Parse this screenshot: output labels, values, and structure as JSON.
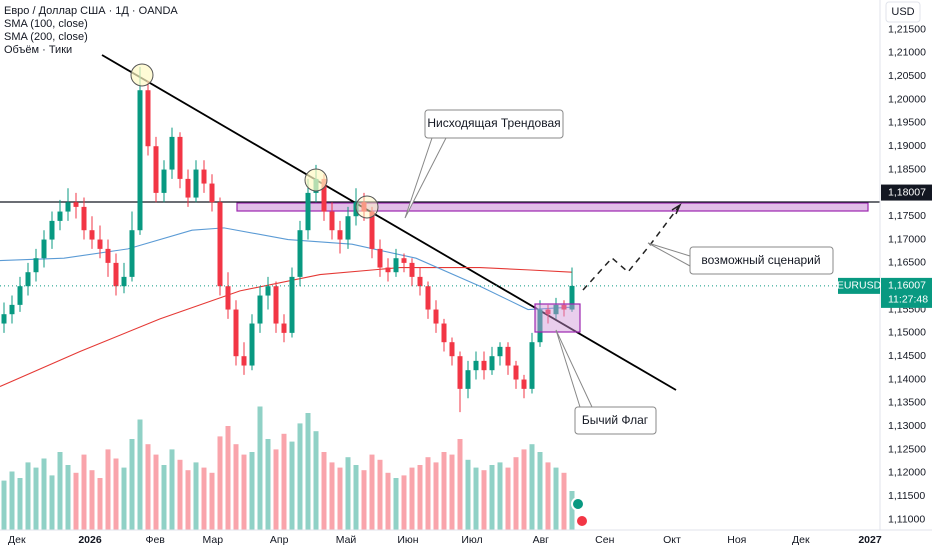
{
  "chart_data": {
    "type": "candlestick",
    "title": "Евро / Доллар США · 1Д · OANDA",
    "indicators": [
      "SMA (100, close)",
      "SMA (200, close)",
      "Объём · Тики"
    ],
    "currency": "USD",
    "symbol": "EURUSD",
    "countdown": "11:27:48",
    "last_price": {
      "value": 1.16007,
      "label": "1,16007"
    },
    "level": {
      "value": 1.18007,
      "label": "1,18007"
    },
    "annotations": [
      "Нисходящая Трендовая",
      "возможный сценарий",
      "Бычий Флаг"
    ],
    "up_color": "#089981",
    "down_color": "#f23645",
    "xlim": [
      0,
      110
    ],
    "xticks": [
      {
        "value": 2.1,
        "label": "Дек"
      },
      {
        "value": 11.25,
        "label": "2026"
      },
      {
        "value": 19.4,
        "label": "Фев"
      },
      {
        "value": 26.6,
        "label": "Мар"
      },
      {
        "value": 34.9,
        "label": "Апр"
      },
      {
        "value": 43.25,
        "label": "Май"
      },
      {
        "value": 51,
        "label": "Июн"
      },
      {
        "value": 59,
        "label": "Июл"
      },
      {
        "value": 67.6,
        "label": "Авг"
      },
      {
        "value": 75.6,
        "label": "Сен"
      },
      {
        "value": 84,
        "label": "Окт"
      },
      {
        "value": 92.1,
        "label": "Ноя"
      },
      {
        "value": 100.1,
        "label": "Дек"
      },
      {
        "value": 108.75,
        "label": "2027"
      }
    ],
    "ylim": [
      1.10775,
      1.22134
    ],
    "yticks": [
      {
        "value": 1.11,
        "label": "1,11000"
      },
      {
        "value": 1.115,
        "label": "1,11500"
      },
      {
        "value": 1.12,
        "label": "1,12000"
      },
      {
        "value": 1.125,
        "label": "1,12500"
      },
      {
        "value": 1.13,
        "label": "1,13000"
      },
      {
        "value": 1.135,
        "label": "1,13500"
      },
      {
        "value": 1.14,
        "label": "1,14000"
      },
      {
        "value": 1.145,
        "label": "1,14500"
      },
      {
        "value": 1.15,
        "label": "1,15000"
      },
      {
        "value": 1.155,
        "label": "1,15500"
      },
      {
        "value": 1.165,
        "label": "1,16500"
      },
      {
        "value": 1.17,
        "label": "1,17000"
      },
      {
        "value": 1.175,
        "label": "1,17500"
      },
      {
        "value": 1.185,
        "label": "1,18500"
      },
      {
        "value": 1.19,
        "label": "1,19000"
      },
      {
        "value": 1.195,
        "label": "1,19500"
      },
      {
        "value": 1.2,
        "label": "1,20000"
      },
      {
        "value": 1.205,
        "label": "1,20500"
      },
      {
        "value": 1.21,
        "label": "1,21000"
      },
      {
        "value": 1.215,
        "label": "1,21500"
      }
    ],
    "ohlc": [
      [
        1.152,
        1.1565,
        1.15,
        1.154
      ],
      [
        1.154,
        1.158,
        1.152,
        1.156
      ],
      [
        1.156,
        1.162,
        1.1545,
        1.16
      ],
      [
        1.16,
        1.165,
        1.158,
        1.163
      ],
      [
        1.163,
        1.168,
        1.161,
        1.166
      ],
      [
        1.166,
        1.172,
        1.164,
        1.17
      ],
      [
        1.17,
        1.176,
        1.168,
        1.174
      ],
      [
        1.174,
        1.1785,
        1.172,
        1.176
      ],
      [
        1.176,
        1.181,
        1.174,
        1.178
      ],
      [
        1.178,
        1.18,
        1.1745,
        1.177
      ],
      [
        1.177,
        1.179,
        1.17,
        1.172
      ],
      [
        1.172,
        1.175,
        1.168,
        1.17
      ],
      [
        1.17,
        1.173,
        1.166,
        1.168
      ],
      [
        1.168,
        1.17,
        1.162,
        1.165
      ],
      [
        1.165,
        1.167,
        1.158,
        1.16
      ],
      [
        1.16,
        1.165,
        1.1585,
        1.162
      ],
      [
        1.162,
        1.176,
        1.161,
        1.172
      ],
      [
        1.172,
        1.207,
        1.171,
        1.202
      ],
      [
        1.202,
        1.204,
        1.188,
        1.19
      ],
      [
        1.19,
        1.192,
        1.178,
        1.18
      ],
      [
        1.18,
        1.187,
        1.178,
        1.185
      ],
      [
        1.185,
        1.194,
        1.183,
        1.192
      ],
      [
        1.192,
        1.193,
        1.181,
        1.183
      ],
      [
        1.183,
        1.185,
        1.177,
        1.179
      ],
      [
        1.179,
        1.187,
        1.178,
        1.185
      ],
      [
        1.185,
        1.187,
        1.18,
        1.182
      ],
      [
        1.182,
        1.184,
        1.176,
        1.178
      ],
      [
        1.178,
        1.179,
        1.158,
        1.16
      ],
      [
        1.16,
        1.163,
        1.153,
        1.155
      ],
      [
        1.155,
        1.157,
        1.143,
        1.145
      ],
      [
        1.145,
        1.148,
        1.141,
        1.143
      ],
      [
        1.143,
        1.154,
        1.142,
        1.152
      ],
      [
        1.152,
        1.16,
        1.15,
        1.158
      ],
      [
        1.158,
        1.162,
        1.155,
        1.16
      ],
      [
        1.16,
        1.161,
        1.15,
        1.152
      ],
      [
        1.152,
        1.154,
        1.148,
        1.15
      ],
      [
        1.15,
        1.164,
        1.149,
        1.162
      ],
      [
        1.162,
        1.174,
        1.16,
        1.172
      ],
      [
        1.172,
        1.183,
        1.17,
        1.18
      ],
      [
        1.18,
        1.186,
        1.178,
        1.183
      ],
      [
        1.183,
        1.184,
        1.174,
        1.176
      ],
      [
        1.176,
        1.178,
        1.17,
        1.172
      ],
      [
        1.172,
        1.174,
        1.167,
        1.17
      ],
      [
        1.17,
        1.177,
        1.168,
        1.175
      ],
      [
        1.175,
        1.181,
        1.173,
        1.178
      ],
      [
        1.178,
        1.18,
        1.174,
        1.176
      ],
      [
        1.176,
        1.177,
        1.166,
        1.168
      ],
      [
        1.168,
        1.17,
        1.162,
        1.164
      ],
      [
        1.164,
        1.166,
        1.161,
        1.163
      ],
      [
        1.163,
        1.168,
        1.162,
        1.166
      ],
      [
        1.166,
        1.167,
        1.163,
        1.165
      ],
      [
        1.165,
        1.166,
        1.16,
        1.162
      ],
      [
        1.162,
        1.164,
        1.158,
        1.16
      ],
      [
        1.16,
        1.161,
        1.153,
        1.155
      ],
      [
        1.155,
        1.157,
        1.15,
        1.152
      ],
      [
        1.152,
        1.153,
        1.146,
        1.148
      ],
      [
        1.148,
        1.149,
        1.143,
        1.145
      ],
      [
        1.145,
        1.146,
        1.133,
        1.138
      ],
      [
        1.138,
        1.144,
        1.136,
        1.142
      ],
      [
        1.142,
        1.146,
        1.14,
        1.144
      ],
      [
        1.144,
        1.146,
        1.14,
        1.142
      ],
      [
        1.142,
        1.147,
        1.141,
        1.145
      ],
      [
        1.145,
        1.148,
        1.143,
        1.147
      ],
      [
        1.147,
        1.148,
        1.141,
        1.143
      ],
      [
        1.143,
        1.144,
        1.138,
        1.14
      ],
      [
        1.14,
        1.141,
        1.136,
        1.138
      ],
      [
        1.138,
        1.15,
        1.137,
        1.148
      ],
      [
        1.148,
        1.157,
        1.147,
        1.155
      ],
      [
        1.155,
        1.156,
        1.152,
        1.154
      ],
      [
        1.154,
        1.1575,
        1.153,
        1.156
      ],
      [
        1.156,
        1.157,
        1.1535,
        1.155
      ],
      [
        1.155,
        1.164,
        1.1545,
        1.16007
      ]
    ],
    "volume": [
      38,
      45,
      40,
      52,
      48,
      55,
      42,
      60,
      50,
      44,
      58,
      46,
      40,
      62,
      55,
      48,
      70,
      85,
      66,
      58,
      50,
      62,
      54,
      46,
      52,
      48,
      44,
      72,
      80,
      66,
      58,
      60,
      95,
      70,
      62,
      74,
      68,
      82,
      90,
      76,
      60,
      52,
      48,
      56,
      50,
      46,
      58,
      54,
      44,
      40,
      42,
      48,
      50,
      56,
      52,
      60,
      58,
      70,
      54,
      48,
      46,
      50,
      52,
      48,
      56,
      62,
      66,
      60,
      52,
      48,
      44,
      30
    ],
    "volume_ylim": [
      0,
      100
    ],
    "sma100": {
      "x": [
        0,
        8,
        16,
        24,
        28,
        36,
        44,
        52,
        60,
        66,
        71.5
      ],
      "values": [
        1.1655,
        1.166,
        1.168,
        1.172,
        1.1725,
        1.17,
        1.169,
        1.166,
        1.16,
        1.155,
        1.1555
      ],
      "color": "#5b9bd5"
    },
    "sma200": {
      "x": [
        0,
        10,
        20,
        30,
        40,
        50,
        60,
        66,
        71.5
      ],
      "values": [
        1.1385,
        1.146,
        1.153,
        1.159,
        1.1625,
        1.164,
        1.164,
        1.1635,
        1.163
      ],
      "color": "#e53935"
    }
  }
}
